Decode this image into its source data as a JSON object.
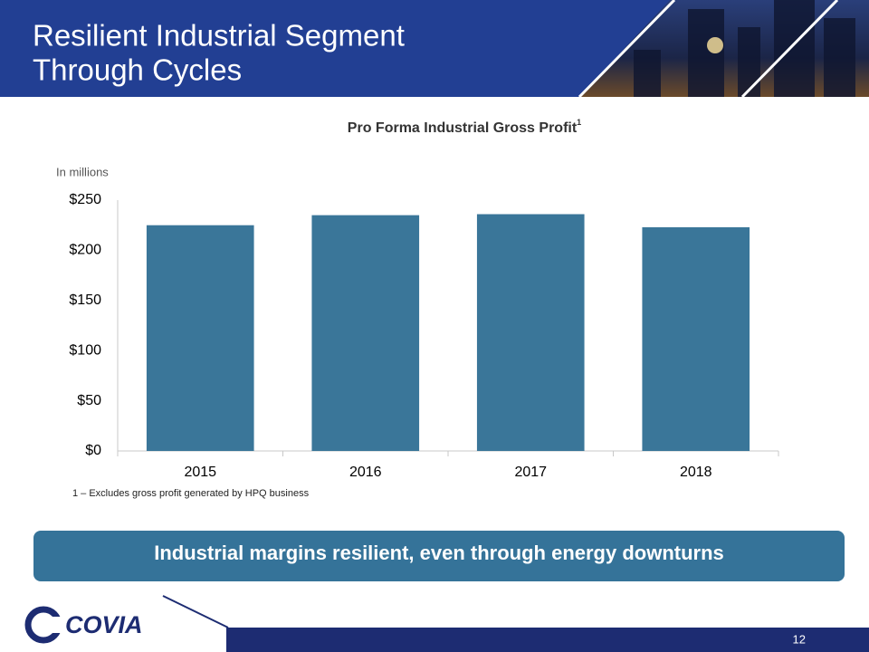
{
  "header": {
    "title_lines": [
      "Resilient Industrial Segment",
      "Through Cycles"
    ]
  },
  "chart_data": {
    "type": "bar",
    "title": "Pro Forma Industrial Gross Profit",
    "title_note": "1",
    "y_axis_label": "In millions",
    "categories": [
      "2015",
      "2016",
      "2017",
      "2018"
    ],
    "values": [
      225,
      235,
      236,
      223
    ],
    "color": "#3a7699",
    "ylim": [
      0,
      250
    ],
    "yticks": [
      {
        "value": 0,
        "label": "$0"
      },
      {
        "value": 50,
        "label": "$50"
      },
      {
        "value": 100,
        "label": "$100"
      },
      {
        "value": 150,
        "label": "$150"
      },
      {
        "value": 200,
        "label": "$200"
      },
      {
        "value": 250,
        "label": "$250"
      }
    ],
    "grid": false
  },
  "footnote": "1 – Excludes gross profit generated by HPQ business",
  "callout": "Industrial margins resilient, even through energy downturns",
  "footer": {
    "logo": "COVIA",
    "page_number": "12"
  }
}
